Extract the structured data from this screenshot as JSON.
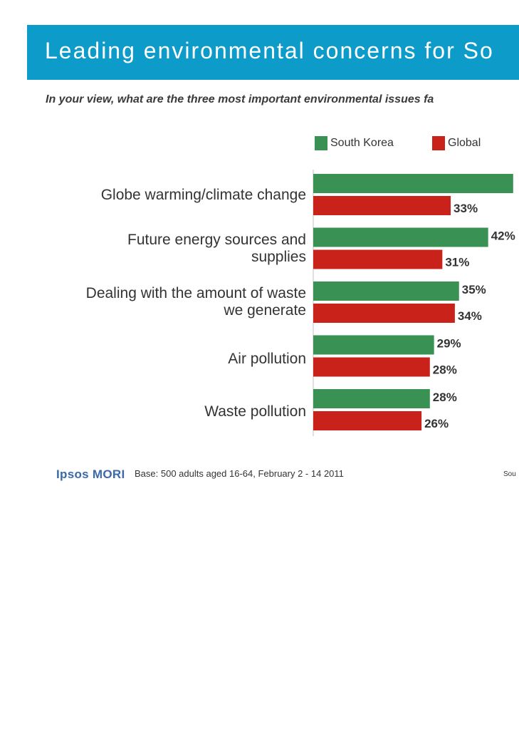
{
  "header": {
    "title": "Leading environmental concerns for So",
    "subtitle": "In your view, what are the three most important environmental issues fa"
  },
  "colors": {
    "banner": "#0d9bc9",
    "south_korea": "#3a9154",
    "global": "#c9221b"
  },
  "chart_data": {
    "type": "bar",
    "orientation": "horizontal",
    "categories": [
      "Globe warming/climate change",
      "Future energy sources and supplies",
      "Dealing with the amount of waste we generate",
      "Air pollution",
      "Waste pollution"
    ],
    "category_lines": [
      [
        "Globe warming/climate change"
      ],
      [
        "Future energy sources and",
        "supplies"
      ],
      [
        "Dealing with the amount of waste",
        "we generate"
      ],
      [
        "Air pollution"
      ],
      [
        "Waste pollution"
      ]
    ],
    "series": [
      {
        "name": "South Korea",
        "values": [
          48,
          42,
          35,
          29,
          28
        ],
        "labels": [
          "",
          "42%",
          "35%",
          "29%",
          "28%"
        ]
      },
      {
        "name": "Global",
        "values": [
          33,
          31,
          34,
          28,
          26
        ],
        "labels": [
          "33%",
          "31%",
          "34%",
          "28%",
          "26%"
        ]
      }
    ],
    "unit": "%",
    "legend_position": "top",
    "grid": false
  },
  "footer": {
    "logo": "Ipsos MORI",
    "base": "Base: 500 adults aged 16-64, February 2 - 14 2011",
    "source": "Sou"
  }
}
